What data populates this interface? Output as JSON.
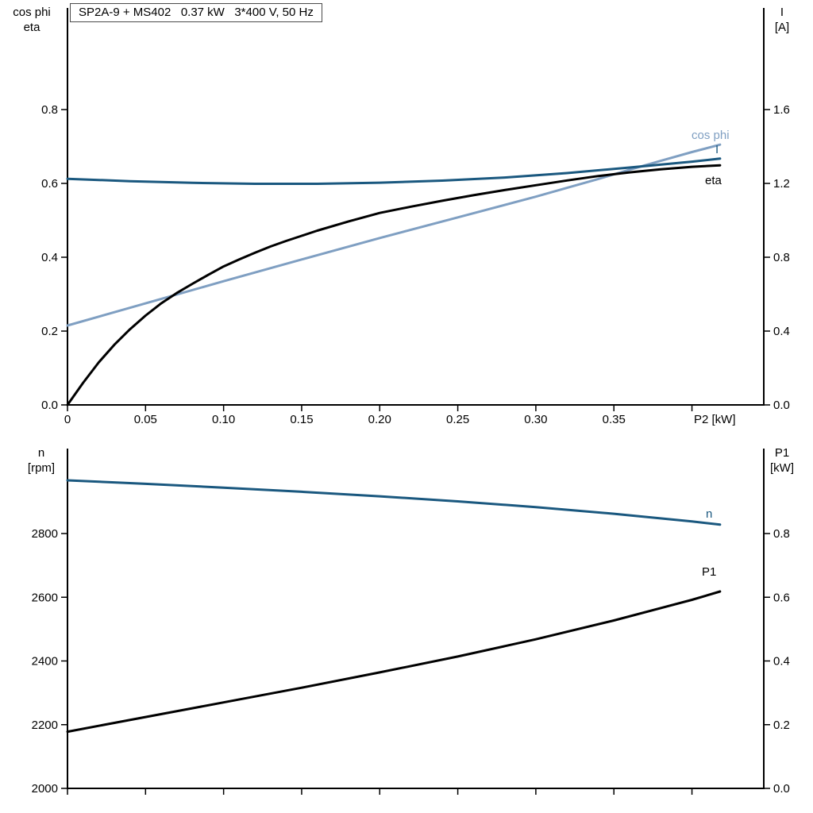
{
  "title_box": "SP2A-9 + MS402   0.37 kW   3*400 V, 50 Hz",
  "colors": {
    "dark_blue": "#1a587f",
    "light_blue": "#7f9fc2",
    "black": "#000000"
  },
  "chart_data": [
    {
      "type": "line",
      "left_label_line1": "cos phi",
      "left_label_line2": "eta",
      "right_label_line1": "I",
      "right_label_line2": "[A]",
      "x_label": "P2 [kW]",
      "xlim": [
        0,
        0.446
      ],
      "left_lim": [
        0,
        0.8
      ],
      "right_lim": [
        0,
        1.6
      ],
      "grid": false,
      "xticks": [
        {
          "v": 0,
          "label": "0"
        },
        {
          "v": 0.05,
          "label": "0.05"
        },
        {
          "v": 0.1,
          "label": "0.10"
        },
        {
          "v": 0.15,
          "label": "0.15"
        },
        {
          "v": 0.2,
          "label": "0.20"
        },
        {
          "v": 0.25,
          "label": "0.25"
        },
        {
          "v": 0.3,
          "label": "0.30"
        },
        {
          "v": 0.35,
          "label": "0.35"
        },
        {
          "v": 0.4,
          "label": ""
        }
      ],
      "left_ticks": [
        {
          "v": 0,
          "label": "0.0"
        },
        {
          "v": 0.2,
          "label": "0.2"
        },
        {
          "v": 0.4,
          "label": "0.4"
        },
        {
          "v": 0.6,
          "label": "0.6"
        },
        {
          "v": 0.8,
          "label": "0.8"
        }
      ],
      "right_ticks": [
        {
          "v": 0,
          "label": "0.0"
        },
        {
          "v": 0.4,
          "label": "0.4"
        },
        {
          "v": 0.8,
          "label": "0.8"
        },
        {
          "v": 1.2,
          "label": "1.2"
        },
        {
          "v": 1.6,
          "label": "1.6"
        }
      ],
      "series": [
        {
          "name": "cos phi",
          "axis": "left",
          "color_key": "light_blue",
          "points": [
            [
              0,
              0.215
            ],
            [
              0.05,
              0.275
            ],
            [
              0.1,
              0.335
            ],
            [
              0.15,
              0.394
            ],
            [
              0.2,
              0.452
            ],
            [
              0.25,
              0.508
            ],
            [
              0.3,
              0.564
            ],
            [
              0.32,
              0.588
            ],
            [
              0.34,
              0.612
            ],
            [
              0.36,
              0.637
            ],
            [
              0.38,
              0.661
            ],
            [
              0.4,
              0.685
            ],
            [
              0.418,
              0.705
            ]
          ]
        },
        {
          "name": "I",
          "axis": "right",
          "color_key": "dark_blue",
          "points": [
            [
              0,
              1.225
            ],
            [
              0.04,
              1.212
            ],
            [
              0.08,
              1.203
            ],
            [
              0.12,
              1.198
            ],
            [
              0.16,
              1.198
            ],
            [
              0.2,
              1.204
            ],
            [
              0.24,
              1.215
            ],
            [
              0.28,
              1.232
            ],
            [
              0.32,
              1.256
            ],
            [
              0.36,
              1.286
            ],
            [
              0.4,
              1.318
            ],
            [
              0.418,
              1.334
            ]
          ]
        },
        {
          "name": "eta",
          "axis": "left",
          "color_key": "black",
          "points": [
            [
              0,
              0
            ],
            [
              0.01,
              0.06
            ],
            [
              0.02,
              0.115
            ],
            [
              0.03,
              0.163
            ],
            [
              0.04,
              0.205
            ],
            [
              0.05,
              0.242
            ],
            [
              0.06,
              0.275
            ],
            [
              0.07,
              0.303
            ],
            [
              0.08,
              0.328
            ],
            [
              0.09,
              0.352
            ],
            [
              0.1,
              0.375
            ],
            [
              0.11,
              0.394
            ],
            [
              0.12,
              0.412
            ],
            [
              0.13,
              0.429
            ],
            [
              0.14,
              0.444
            ],
            [
              0.15,
              0.458
            ],
            [
              0.16,
              0.472
            ],
            [
              0.18,
              0.497
            ],
            [
              0.2,
              0.52
            ],
            [
              0.22,
              0.537
            ],
            [
              0.24,
              0.553
            ],
            [
              0.26,
              0.568
            ],
            [
              0.28,
              0.582
            ],
            [
              0.3,
              0.595
            ],
            [
              0.32,
              0.608
            ],
            [
              0.34,
              0.62
            ],
            [
              0.36,
              0.63
            ],
            [
              0.38,
              0.638
            ],
            [
              0.4,
              0.645
            ],
            [
              0.418,
              0.649
            ]
          ]
        }
      ]
    },
    {
      "type": "line",
      "left_label_line1": "n",
      "left_label_line2": "[rpm]",
      "right_label_line1": "P1",
      "right_label_line2": "[kW]",
      "x_label": "",
      "xlim": [
        0,
        0.446
      ],
      "left_lim": [
        2000,
        2800
      ],
      "right_lim": [
        0,
        0.8
      ],
      "grid": false,
      "xticks": [
        {
          "v": 0,
          "label": ""
        },
        {
          "v": 0.05,
          "label": ""
        },
        {
          "v": 0.1,
          "label": ""
        },
        {
          "v": 0.15,
          "label": ""
        },
        {
          "v": 0.2,
          "label": ""
        },
        {
          "v": 0.25,
          "label": ""
        },
        {
          "v": 0.3,
          "label": ""
        },
        {
          "v": 0.35,
          "label": ""
        },
        {
          "v": 0.4,
          "label": ""
        }
      ],
      "left_ticks": [
        {
          "v": 2000,
          "label": "2000"
        },
        {
          "v": 2200,
          "label": "2200"
        },
        {
          "v": 2400,
          "label": "2400"
        },
        {
          "v": 2600,
          "label": "2600"
        },
        {
          "v": 2800,
          "label": "2800"
        }
      ],
      "right_ticks": [
        {
          "v": 0,
          "label": "0.0"
        },
        {
          "v": 0.2,
          "label": "0.2"
        },
        {
          "v": 0.4,
          "label": "0.4"
        },
        {
          "v": 0.6,
          "label": "0.6"
        },
        {
          "v": 0.8,
          "label": "0.8"
        }
      ],
      "series": [
        {
          "name": "n",
          "axis": "left",
          "color_key": "dark_blue",
          "points": [
            [
              0,
              2967
            ],
            [
              0.05,
              2956
            ],
            [
              0.1,
              2944
            ],
            [
              0.15,
              2931
            ],
            [
              0.2,
              2917
            ],
            [
              0.25,
              2901
            ],
            [
              0.3,
              2883
            ],
            [
              0.35,
              2862
            ],
            [
              0.4,
              2838
            ],
            [
              0.418,
              2828
            ]
          ]
        },
        {
          "name": "P1",
          "axis": "right",
          "color_key": "black",
          "points": [
            [
              0,
              0.178
            ],
            [
              0.05,
              0.224
            ],
            [
              0.1,
              0.27
            ],
            [
              0.15,
              0.316
            ],
            [
              0.2,
              0.364
            ],
            [
              0.25,
              0.414
            ],
            [
              0.3,
              0.468
            ],
            [
              0.35,
              0.527
            ],
            [
              0.4,
              0.592
            ],
            [
              0.418,
              0.618
            ]
          ]
        }
      ]
    }
  ]
}
